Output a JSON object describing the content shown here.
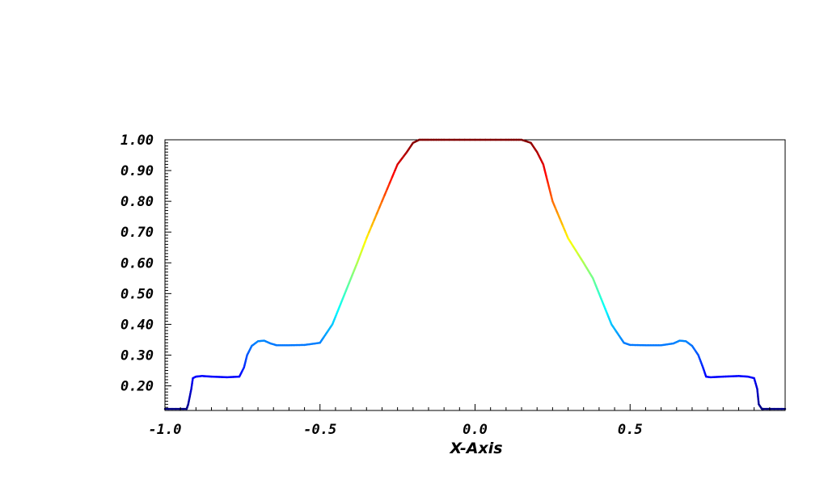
{
  "chart_data": {
    "type": "line",
    "title": "",
    "xlabel": "X-Axis",
    "ylabel": "",
    "xlim": [
      -1.0,
      1.0
    ],
    "ylim": [
      0.12,
      1.0
    ],
    "x_ticks": [
      {
        "value": -1.0,
        "label": "-1.0"
      },
      {
        "value": -0.5,
        "label": "-0.5"
      },
      {
        "value": 0.0,
        "label": "0.0"
      },
      {
        "value": 0.5,
        "label": "0.5"
      }
    ],
    "y_ticks": [
      {
        "value": 0.2,
        "label": "0.20"
      },
      {
        "value": 0.3,
        "label": "0.30"
      },
      {
        "value": 0.4,
        "label": "0.40"
      },
      {
        "value": 0.5,
        "label": "0.50"
      },
      {
        "value": 0.6,
        "label": "0.60"
      },
      {
        "value": 0.7,
        "label": "0.70"
      },
      {
        "value": 0.8,
        "label": "0.80"
      },
      {
        "value": 0.9,
        "label": "0.90"
      },
      {
        "value": 1.0,
        "label": "1.00"
      }
    ],
    "grid": false,
    "colormap": "jet",
    "series": [
      {
        "x": [
          -1.0,
          -0.93,
          -0.925,
          -0.915,
          -0.91,
          -0.9,
          -0.88,
          -0.85,
          -0.8,
          -0.76,
          -0.745,
          -0.735,
          -0.72,
          -0.7,
          -0.68,
          -0.66,
          -0.64,
          -0.6,
          -0.55,
          -0.5,
          -0.48,
          -0.46,
          -0.44,
          -0.42,
          -0.4,
          -0.38,
          -0.35,
          -0.3,
          -0.25,
          -0.22,
          -0.2,
          -0.18,
          -0.15,
          -0.1,
          0.0,
          0.1,
          0.15,
          0.18,
          0.2,
          0.22,
          0.25,
          0.3,
          0.35,
          0.38,
          0.4,
          0.42,
          0.44,
          0.46,
          0.48,
          0.5,
          0.55,
          0.6,
          0.64,
          0.66,
          0.68,
          0.7,
          0.72,
          0.735,
          0.745,
          0.76,
          0.8,
          0.85,
          0.88,
          0.9,
          0.91,
          0.915,
          0.925,
          0.93,
          1.0
        ],
        "y": [
          0.125,
          0.125,
          0.14,
          0.19,
          0.225,
          0.23,
          0.232,
          0.23,
          0.228,
          0.23,
          0.26,
          0.3,
          0.33,
          0.345,
          0.347,
          0.338,
          0.332,
          0.332,
          0.333,
          0.34,
          0.37,
          0.4,
          0.45,
          0.5,
          0.55,
          0.6,
          0.68,
          0.8,
          0.92,
          0.96,
          0.99,
          1.0,
          1.0,
          1.0,
          1.0,
          1.0,
          1.0,
          0.99,
          0.96,
          0.92,
          0.8,
          0.68,
          0.6,
          0.55,
          0.5,
          0.45,
          0.4,
          0.37,
          0.34,
          0.333,
          0.332,
          0.332,
          0.338,
          0.347,
          0.345,
          0.33,
          0.3,
          0.26,
          0.23,
          0.228,
          0.23,
          0.232,
          0.23,
          0.225,
          0.19,
          0.14,
          0.125,
          0.125,
          0.125
        ]
      }
    ]
  }
}
